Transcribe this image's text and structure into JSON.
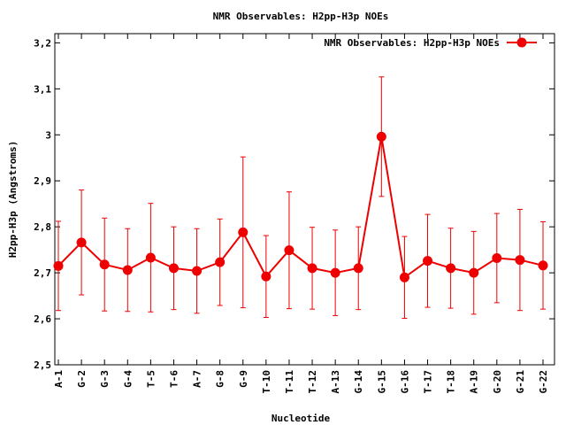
{
  "chart_data": {
    "type": "line",
    "title": "NMR Observables: H2pp-H3p NOEs",
    "xlabel": "Nucleotide",
    "ylabel": "H2pp-H3p (Angstroms)",
    "ylim": [
      2.5,
      3.22
    ],
    "yticks": [
      "2,5",
      "2,6",
      "2,7",
      "2,8",
      "2,9",
      "3",
      "3,1",
      "3,2"
    ],
    "yticks_values": [
      2.5,
      2.6,
      2.7,
      2.8,
      2.9,
      3.0,
      3.1,
      3.2
    ],
    "categories": [
      "A-1",
      "G-2",
      "G-3",
      "G-4",
      "T-5",
      "T-6",
      "A-7",
      "G-8",
      "G-9",
      "T-10",
      "T-11",
      "T-12",
      "A-13",
      "G-14",
      "G-15",
      "G-16",
      "T-17",
      "T-18",
      "A-19",
      "G-20",
      "G-21",
      "G-22"
    ],
    "legend_position": "top-right",
    "grid": false,
    "series": [
      {
        "name": "NMR Observables: H2pp-H3p NOEs",
        "color": "#ee0000",
        "values": [
          2.715,
          2.766,
          2.718,
          2.706,
          2.733,
          2.71,
          2.704,
          2.723,
          2.788,
          2.692,
          2.749,
          2.71,
          2.7,
          2.71,
          2.996,
          2.69,
          2.726,
          2.71,
          2.7,
          2.732,
          2.728,
          2.716
        ],
        "errors": [
          0.097,
          0.114,
          0.101,
          0.09,
          0.118,
          0.09,
          0.092,
          0.094,
          0.164,
          0.089,
          0.127,
          0.089,
          0.093,
          0.09,
          0.13,
          0.089,
          0.101,
          0.087,
          0.09,
          0.097,
          0.11,
          0.095
        ]
      }
    ]
  }
}
